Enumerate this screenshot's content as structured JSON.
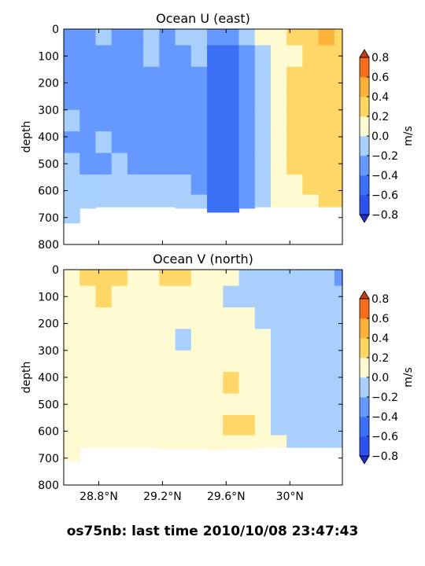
{
  "footer_text": "os75nb: last time 2010/10/08 23:47:43",
  "colors": {
    "-0.8": "#2d52f0",
    "-0.6": "#3b70f5",
    "-0.4": "#6699ff",
    "-0.2": "#a9d0fc",
    "0.0": "#d9ecfb",
    "0.2": "#fffad2",
    "0.4": "#ffd766",
    "0.6": "#ffb23a",
    "0.8": "#f46d1f",
    "over": "#c93e13",
    "under": "#1f2bd4"
  },
  "chart_data": [
    {
      "type": "heatmap",
      "title": "Ocean U (east)",
      "ylabel": "depth",
      "ylim": [
        800,
        0
      ],
      "yticks": [
        "0",
        "100",
        "200",
        "300",
        "400",
        "500",
        "600",
        "700",
        "800"
      ],
      "xlim": [
        28.58,
        30.33
      ],
      "xticks": [
        28.8,
        29.2,
        29.6,
        30.0
      ],
      "xticklabels": [],
      "colorbar": {
        "label": "m/s",
        "levels": [
          -0.8,
          -0.6,
          -0.4,
          -0.2,
          0.0,
          0.2,
          0.4,
          0.6,
          0.8
        ],
        "ticklabels": [
          "0.8",
          "0.6",
          "0.4",
          "0.2",
          "0.0",
          "−0.2",
          "−0.4",
          "−0.6",
          "−0.8"
        ]
      },
      "x": [
        28.58,
        28.68,
        28.78,
        28.88,
        28.98,
        29.08,
        29.18,
        29.28,
        29.38,
        29.48,
        29.58,
        29.68,
        29.78,
        29.88,
        29.98,
        30.08,
        30.18,
        30.28,
        30.33
      ],
      "depth": [
        20,
        100,
        180,
        260,
        340,
        420,
        500,
        580,
        650
      ],
      "u": [
        [
          -0.3,
          -0.3,
          -0.1,
          -0.2,
          -0.2,
          -0.1,
          -0.2,
          -0.1,
          -0.1,
          -0.3,
          -0.3,
          -0.1,
          0.1,
          0.1,
          0.2,
          0.2,
          0.5,
          0.3,
          0.2
        ],
        [
          -0.3,
          -0.3,
          -0.2,
          -0.2,
          -0.2,
          -0.1,
          -0.2,
          -0.2,
          -0.1,
          -0.5,
          -0.5,
          -0.3,
          -0.1,
          0.1,
          0.1,
          0.2,
          0.3,
          0.3,
          0.3
        ],
        [
          -0.2,
          -0.3,
          -0.3,
          -0.2,
          -0.2,
          -0.2,
          -0.3,
          -0.2,
          -0.3,
          -0.5,
          -0.5,
          -0.3,
          -0.1,
          0.1,
          0.3,
          0.3,
          0.3,
          0.3,
          0.3
        ],
        [
          -0.2,
          -0.3,
          -0.2,
          -0.3,
          -0.3,
          -0.2,
          -0.3,
          -0.2,
          -0.3,
          -0.5,
          -0.5,
          -0.3,
          -0.1,
          0.1,
          0.3,
          0.3,
          0.3,
          0.3,
          0.3
        ],
        [
          -0.1,
          -0.2,
          -0.2,
          -0.2,
          -0.3,
          -0.2,
          -0.3,
          -0.2,
          -0.3,
          -0.5,
          -0.5,
          -0.3,
          -0.1,
          0.1,
          0.3,
          0.3,
          0.3,
          0.3,
          0.3
        ],
        [
          -0.2,
          -0.3,
          -0.1,
          -0.2,
          -0.2,
          -0.2,
          -0.3,
          -0.2,
          -0.3,
          -0.5,
          -0.5,
          -0.3,
          -0.1,
          0.1,
          0.3,
          0.3,
          0.3,
          0.3,
          0.3
        ],
        [
          -0.1,
          -0.2,
          -0.2,
          -0.1,
          -0.2,
          -0.2,
          -0.3,
          -0.2,
          -0.3,
          -0.5,
          -0.5,
          -0.3,
          -0.1,
          0.1,
          0.3,
          0.3,
          0.3,
          0.3,
          0.3
        ],
        [
          -0.1,
          -0.1,
          -0.1,
          -0.1,
          -0.1,
          -0.1,
          -0.1,
          -0.1,
          -0.2,
          -0.5,
          -0.5,
          -0.3,
          -0.1,
          0.1,
          0.1,
          0.3,
          0.3,
          0.3,
          0.3
        ],
        [
          -0.1,
          -0.1,
          -0.1,
          -0.1,
          -0.1,
          -0.1,
          -0.1,
          -0.1,
          -0.1,
          -0.5,
          -0.5,
          -0.3,
          -0.1,
          0.1,
          0.1,
          0.1,
          0.3,
          0.3,
          0.3
        ]
      ],
      "bottom_depth": [
        720,
        665,
        660,
        660,
        660,
        660,
        660,
        665,
        665,
        680,
        680,
        665,
        660,
        660,
        660,
        660,
        660,
        660,
        660
      ]
    },
    {
      "type": "heatmap",
      "title": "Ocean V (north)",
      "ylabel": "depth",
      "ylim": [
        800,
        0
      ],
      "yticks": [
        "0",
        "100",
        "200",
        "300",
        "400",
        "500",
        "600",
        "700",
        "800"
      ],
      "xlim": [
        28.58,
        30.33
      ],
      "xticks": [
        28.8,
        29.2,
        29.6,
        30.0
      ],
      "xticklabels": [
        "28.8°N",
        "29.2°N",
        "29.6°N",
        "30°N"
      ],
      "colorbar": {
        "label": "m/s",
        "levels": [
          -0.8,
          -0.6,
          -0.4,
          -0.2,
          0.0,
          0.2,
          0.4,
          0.6,
          0.8
        ],
        "ticklabels": [
          "0.8",
          "0.6",
          "0.4",
          "0.2",
          "0.0",
          "−0.2",
          "−0.4",
          "−0.6",
          "−0.8"
        ]
      },
      "x": [
        28.58,
        28.68,
        28.78,
        28.88,
        28.98,
        29.08,
        29.18,
        29.28,
        29.38,
        29.48,
        29.58,
        29.68,
        29.78,
        29.88,
        29.98,
        30.08,
        30.18,
        30.28,
        30.33
      ],
      "depth": [
        20,
        100,
        180,
        260,
        340,
        420,
        500,
        580,
        650
      ],
      "v": [
        [
          0.1,
          0.2,
          0.3,
          0.3,
          0.1,
          0.1,
          0.3,
          0.2,
          0.1,
          0.0,
          0.0,
          -0.1,
          -0.1,
          -0.1,
          -0.1,
          -0.1,
          -0.1,
          -0.2,
          -0.2
        ],
        [
          0.1,
          0.1,
          0.2,
          0.1,
          0.1,
          0.1,
          0.1,
          0.1,
          0.1,
          0.1,
          -0.1,
          -0.1,
          -0.1,
          -0.1,
          -0.1,
          -0.1,
          -0.1,
          -0.1,
          -0.1
        ],
        [
          0.1,
          0.1,
          0.1,
          0.1,
          0.1,
          0.1,
          0.1,
          0.1,
          0.1,
          0.1,
          0.1,
          0.1,
          -0.1,
          -0.1,
          -0.1,
          -0.1,
          -0.1,
          -0.1,
          -0.1
        ],
        [
          0.1,
          0.1,
          0.1,
          0.1,
          0.1,
          0.1,
          0.1,
          -0.1,
          0.1,
          0.1,
          0.1,
          0.1,
          0.1,
          -0.1,
          -0.1,
          -0.1,
          -0.1,
          -0.1,
          -0.1
        ],
        [
          0.1,
          0.1,
          0.1,
          0.1,
          0.1,
          0.1,
          0.1,
          0.1,
          0.1,
          0.1,
          0.1,
          0.1,
          0.1,
          -0.1,
          -0.1,
          -0.1,
          -0.1,
          -0.1,
          -0.1
        ],
        [
          0.1,
          0.1,
          0.1,
          0.1,
          0.1,
          0.1,
          0.1,
          0.1,
          0.1,
          0.1,
          0.3,
          0.1,
          0.1,
          -0.1,
          -0.1,
          -0.1,
          -0.1,
          -0.1,
          -0.1
        ],
        [
          0.1,
          0.1,
          0.1,
          0.1,
          0.1,
          0.1,
          0.1,
          0.1,
          0.1,
          0.1,
          0.1,
          0.1,
          0.1,
          -0.1,
          -0.1,
          -0.1,
          -0.1,
          -0.1,
          -0.1
        ],
        [
          0.1,
          0.1,
          0.1,
          0.1,
          0.1,
          0.1,
          0.1,
          0.1,
          0.1,
          0.1,
          0.3,
          0.3,
          0.1,
          -0.1,
          -0.1,
          -0.1,
          -0.1,
          -0.1,
          -0.1
        ],
        [
          0.1,
          0.1,
          0.1,
          0.1,
          0.1,
          0.1,
          0.1,
          0.1,
          0.1,
          0.1,
          0.1,
          0.1,
          0.1,
          0.1,
          -0.1,
          -0.1,
          -0.1,
          -0.1,
          -0.1
        ]
      ],
      "bottom_depth": [
        710,
        660,
        660,
        660,
        660,
        660,
        665,
        665,
        665,
        670,
        665,
        665,
        660,
        660,
        660,
        660,
        660,
        660,
        660
      ]
    }
  ]
}
